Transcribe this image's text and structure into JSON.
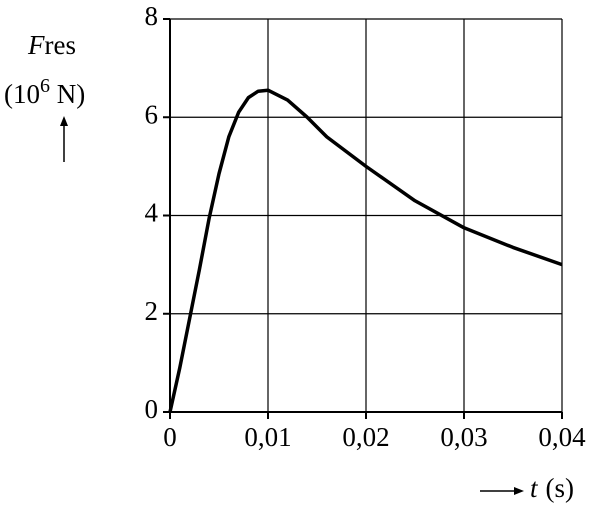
{
  "chart_data": {
    "type": "line",
    "y_label": {
      "symbol": "F",
      "subscript": "res",
      "unit_start": "(10",
      "unit_exponent": "6",
      "unit_end": " N)"
    },
    "x_label": {
      "symbol": "t",
      "unit": "(s)"
    },
    "x": [
      0,
      0.001,
      0.002,
      0.003,
      0.004,
      0.005,
      0.006,
      0.007,
      0.008,
      0.009,
      0.01,
      0.012,
      0.014,
      0.016,
      0.018,
      0.02,
      0.025,
      0.03,
      0.035,
      0.04
    ],
    "series": [
      {
        "color": "#000000",
        "values": [
          0,
          0.9,
          1.9,
          2.9,
          3.95,
          4.85,
          5.6,
          6.1,
          6.4,
          6.53,
          6.55,
          6.35,
          6.0,
          5.6,
          5.3,
          5.0,
          4.3,
          3.75,
          3.35,
          3.0
        ]
      }
    ],
    "xlim": [
      0,
      0.04
    ],
    "xticks": [
      0,
      {
        "value": 0.01,
        "label": "0,01"
      },
      {
        "value": 0.02,
        "label": "0,02"
      },
      {
        "value": 0.03,
        "label": "0,03"
      },
      {
        "value": 0.04,
        "label": "0,04"
      }
    ],
    "ylim": [
      0,
      8
    ],
    "yticks": [
      0,
      2,
      4,
      6,
      8
    ],
    "grid": true
  }
}
